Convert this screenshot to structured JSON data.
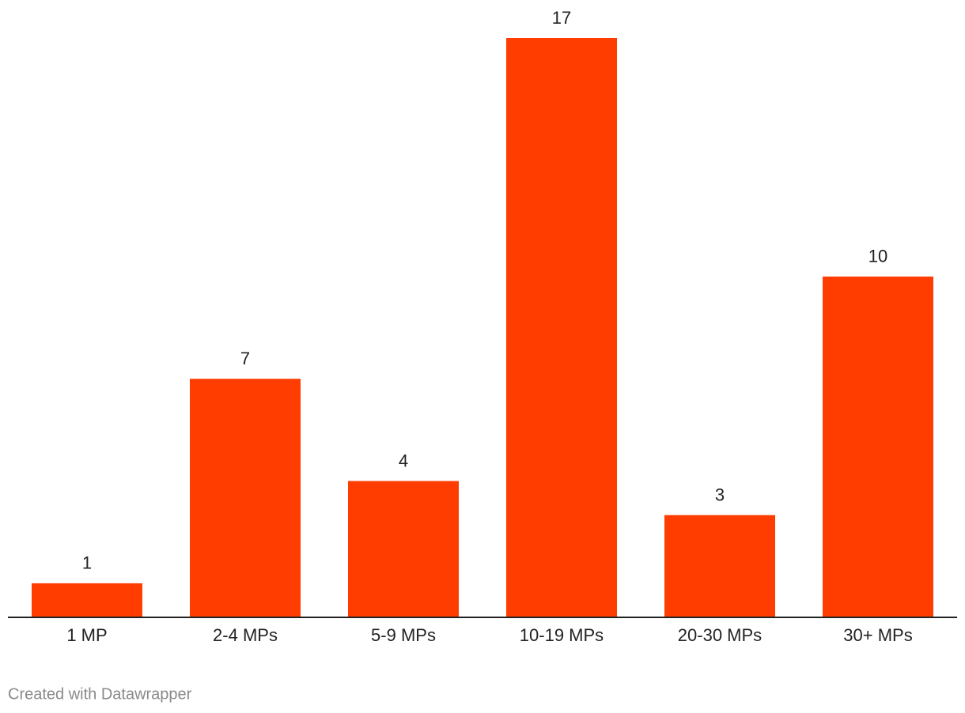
{
  "chart_data": {
    "type": "bar",
    "categories": [
      "1 MP",
      "2-4 MPs",
      "5-9 MPs",
      "10-19 MPs",
      "20-30 MPs",
      "30+ MPs"
    ],
    "values": [
      1,
      7,
      4,
      17,
      3,
      10
    ],
    "color": "#ff3d00",
    "credit": "Created with Datawrapper"
  }
}
